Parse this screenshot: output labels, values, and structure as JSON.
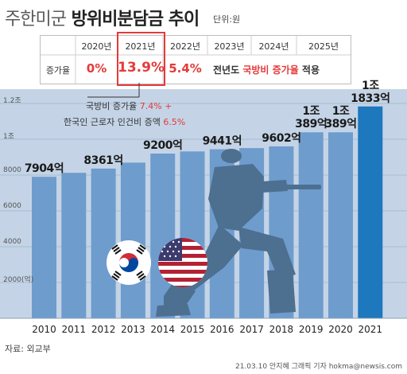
{
  "header": {
    "title_part1": "주한미군",
    "title_part2": "방위비분담금 추이",
    "unit": "단위:원"
  },
  "increase_table": {
    "years": [
      "2020년",
      "2021년",
      "2022년",
      "2023년",
      "2024년",
      "2025년"
    ],
    "row_label": "증가율",
    "values": [
      "0%",
      "13.9%",
      "5.4%"
    ],
    "note_prefix": "전년도",
    "note_highlight": "국방비 증가율",
    "note_suffix": "적용"
  },
  "notes": {
    "line1_text": "국방비 증가율",
    "line1_value": "7.4% +",
    "line2_text": "한국인 근로자 인건비 증액",
    "line2_value": "6.5%"
  },
  "chart_data": {
    "type": "bar",
    "categories": [
      "2010",
      "2011",
      "2012",
      "2013",
      "2014",
      "2015",
      "2016",
      "2017",
      "2018",
      "2019",
      "2020",
      "2021"
    ],
    "values": [
      7904,
      8125,
      8361,
      8695,
      9200,
      9320,
      9441,
      9507,
      9602,
      10389,
      10389,
      11833
    ],
    "unit": "억",
    "y_ticks": [
      "1.2조",
      "1조",
      "8000",
      "6000",
      "4000",
      "2000(억)"
    ],
    "ylim": [
      0,
      12000
    ],
    "data_labels": [
      {
        "index": 0,
        "lines": [
          "7904억"
        ]
      },
      {
        "index": 2,
        "lines": [
          "8361억"
        ]
      },
      {
        "index": 4,
        "lines": [
          "9200억"
        ]
      },
      {
        "index": 6,
        "lines": [
          "9441억"
        ]
      },
      {
        "index": 8,
        "lines": [
          "9602억"
        ]
      },
      {
        "index": 9,
        "lines": [
          "1조",
          "389억"
        ]
      },
      {
        "index": 10,
        "lines": [
          "1조",
          "389억"
        ]
      },
      {
        "index": 11,
        "lines": [
          "1조",
          "1833억"
        ]
      }
    ],
    "colors": {
      "bar": "#6e9ccd",
      "highlight_bar": "#1d78bd",
      "background_band": "#c4d4e6",
      "silhouette": "#4d6f90"
    }
  },
  "footer": {
    "source": "자료: 외교부",
    "credit": "21.03.10 안지혜 그래픽 기자 hokma@newsis.com"
  }
}
